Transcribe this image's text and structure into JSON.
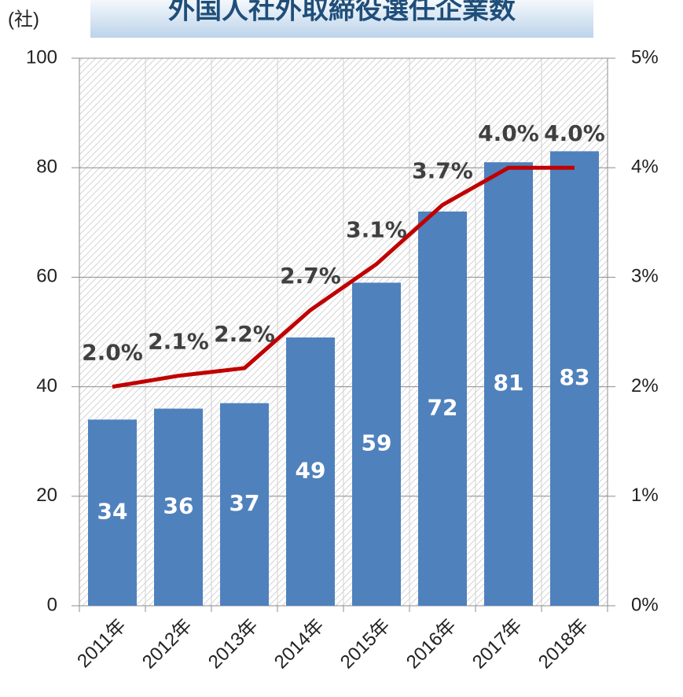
{
  "chart_data": {
    "type": "bar_line",
    "title": "外国人社外取締役選任企業数",
    "ylabel": "(社)",
    "categories": [
      "2011年",
      "2012年",
      "2013年",
      "2014年",
      "2015年",
      "2016年",
      "2017年",
      "2018年"
    ],
    "series": [
      {
        "type": "bar",
        "color": "#4f81bd",
        "values": [
          34,
          36,
          37,
          49,
          59,
          72,
          81,
          83
        ]
      },
      {
        "type": "line",
        "axis": "y2",
        "color": "#c00000",
        "values": [
          2.0,
          2.1,
          2.17,
          2.7,
          3.12,
          3.66,
          4.0,
          4.0
        ],
        "value_labels": [
          "2.0%",
          "2.1%",
          "2.2%",
          "2.7%",
          "3.1%",
          "3.7%",
          "4.0%",
          "4.0%"
        ]
      }
    ],
    "ylim": [
      0,
      100
    ],
    "yticks": [
      0,
      20,
      40,
      60,
      80,
      100
    ],
    "y2lim": [
      0,
      5
    ],
    "y2ticks": [
      {
        "value": 0,
        "label": "0%"
      },
      {
        "value": 1,
        "label": "1%"
      },
      {
        "value": 2,
        "label": "2%"
      },
      {
        "value": 3,
        "label": "3%"
      },
      {
        "value": 4,
        "label": "4%"
      },
      {
        "value": 5,
        "label": "5%"
      }
    ],
    "grid": true
  }
}
